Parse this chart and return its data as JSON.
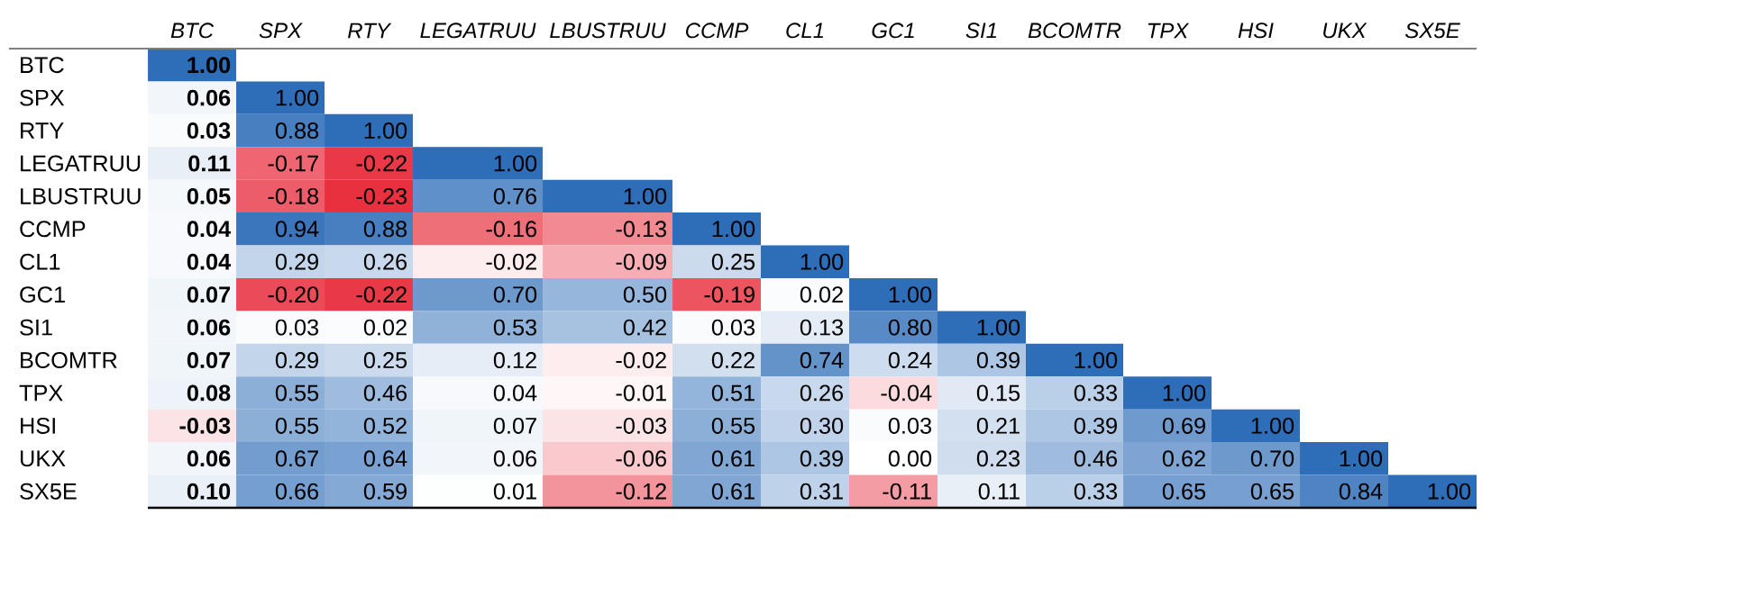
{
  "chart_data": {
    "type": "heatmap",
    "categories": [
      "BTC",
      "SPX",
      "RTY",
      "LEGATRUU",
      "LBUSTRUU",
      "CCMP",
      "CL1",
      "GC1",
      "SI1",
      "BCOMTR",
      "TPX",
      "HSI",
      "UKX",
      "SX5E"
    ],
    "y_categories": [
      "BTC",
      "SPX",
      "RTY",
      "LEGATRUU",
      "LBUSTRUU",
      "CCMP",
      "CL1",
      "GC1",
      "SI1",
      "BCOMTR",
      "TPX",
      "HSI",
      "UKX",
      "SX5E"
    ],
    "cells": [
      [
        1.0,
        null,
        null,
        null,
        null,
        null,
        null,
        null,
        null,
        null,
        null,
        null,
        null,
        null
      ],
      [
        0.06,
        1.0,
        null,
        null,
        null,
        null,
        null,
        null,
        null,
        null,
        null,
        null,
        null,
        null
      ],
      [
        0.03,
        0.88,
        1.0,
        null,
        null,
        null,
        null,
        null,
        null,
        null,
        null,
        null,
        null,
        null
      ],
      [
        0.11,
        -0.17,
        -0.22,
        1.0,
        null,
        null,
        null,
        null,
        null,
        null,
        null,
        null,
        null,
        null
      ],
      [
        0.05,
        -0.18,
        -0.23,
        0.76,
        1.0,
        null,
        null,
        null,
        null,
        null,
        null,
        null,
        null,
        null
      ],
      [
        0.04,
        0.94,
        0.88,
        -0.16,
        -0.13,
        1.0,
        null,
        null,
        null,
        null,
        null,
        null,
        null,
        null
      ],
      [
        0.04,
        0.29,
        0.26,
        -0.02,
        -0.09,
        0.25,
        1.0,
        null,
        null,
        null,
        null,
        null,
        null,
        null
      ],
      [
        0.07,
        -0.2,
        -0.22,
        0.7,
        0.5,
        -0.19,
        0.02,
        1.0,
        null,
        null,
        null,
        null,
        null,
        null
      ],
      [
        0.06,
        0.03,
        0.02,
        0.53,
        0.42,
        0.03,
        0.13,
        0.8,
        1.0,
        null,
        null,
        null,
        null,
        null
      ],
      [
        0.07,
        0.29,
        0.25,
        0.12,
        -0.02,
        0.22,
        0.74,
        0.24,
        0.39,
        1.0,
        null,
        null,
        null,
        null
      ],
      [
        0.08,
        0.55,
        0.46,
        0.04,
        -0.01,
        0.51,
        0.26,
        -0.04,
        0.15,
        0.33,
        1.0,
        null,
        null,
        null
      ],
      [
        -0.03,
        0.55,
        0.52,
        0.07,
        -0.03,
        0.55,
        0.3,
        0.03,
        0.21,
        0.39,
        0.69,
        1.0,
        null,
        null
      ],
      [
        0.06,
        0.67,
        0.64,
        0.06,
        -0.06,
        0.61,
        0.39,
        0.0,
        0.23,
        0.46,
        0.62,
        0.7,
        1.0,
        null
      ],
      [
        0.1,
        0.66,
        0.59,
        0.01,
        -0.12,
        0.61,
        0.31,
        -0.11,
        0.11,
        0.33,
        0.65,
        0.65,
        0.84,
        1.0
      ]
    ],
    "cell_labels": [
      [
        "1.00",
        null,
        null,
        null,
        null,
        null,
        null,
        null,
        null,
        null,
        null,
        null,
        null,
        null
      ],
      [
        "0.06",
        "1.00",
        null,
        null,
        null,
        null,
        null,
        null,
        null,
        null,
        null,
        null,
        null,
        null
      ],
      [
        "0.03",
        "0.88",
        "1.00",
        null,
        null,
        null,
        null,
        null,
        null,
        null,
        null,
        null,
        null,
        null
      ],
      [
        "0.11",
        "-0.17",
        "-0.22",
        "1.00",
        null,
        null,
        null,
        null,
        null,
        null,
        null,
        null,
        null,
        null
      ],
      [
        "0.05",
        "-0.18",
        "-0.23",
        "0.76",
        "1.00",
        null,
        null,
        null,
        null,
        null,
        null,
        null,
        null,
        null
      ],
      [
        "0.04",
        "0.94",
        "0.88",
        "-0.16",
        "-0.13",
        "1.00",
        null,
        null,
        null,
        null,
        null,
        null,
        null,
        null
      ],
      [
        "0.04",
        "0.29",
        "0.26",
        "-0.02",
        "-0.09",
        "0.25",
        "1.00",
        null,
        null,
        null,
        null,
        null,
        null,
        null
      ],
      [
        "0.07",
        "-0.20",
        "-0.22",
        "0.70",
        "0.50",
        "-0.19",
        "0.02",
        "1.00",
        null,
        null,
        null,
        null,
        null,
        null
      ],
      [
        "0.06",
        "0.03",
        "0.02",
        "0.53",
        "0.42",
        "0.03",
        "0.13",
        "0.80",
        "1.00",
        null,
        null,
        null,
        null,
        null
      ],
      [
        "0.07",
        "0.29",
        "0.25",
        "0.12",
        "-0.02",
        "0.22",
        "0.74",
        "0.24",
        "0.39",
        "1.00",
        null,
        null,
        null,
        null
      ],
      [
        "0.08",
        "0.55",
        "0.46",
        "0.04",
        "-0.01",
        "0.51",
        "0.26",
        "-0.04",
        "0.15",
        "0.33",
        "1.00",
        null,
        null,
        null
      ],
      [
        "-0.03",
        "0.55",
        "0.52",
        "0.07",
        "-0.03",
        "0.55",
        "0.30",
        "0.03",
        "0.21",
        "0.39",
        "0.69",
        "1.00",
        null,
        null
      ],
      [
        "0.06",
        "0.67",
        "0.64",
        "0.06",
        "-0.06",
        "0.61",
        "0.39",
        "0.00",
        "0.23",
        "0.46",
        "0.62",
        "0.70",
        "1.00",
        null
      ],
      [
        "0.10",
        "0.66",
        "0.59",
        "0.01",
        "-0.12",
        "0.61",
        "0.31",
        "-0.11",
        "0.11",
        "0.33",
        "0.65",
        "0.65",
        "0.84",
        "1.00"
      ]
    ]
  }
}
